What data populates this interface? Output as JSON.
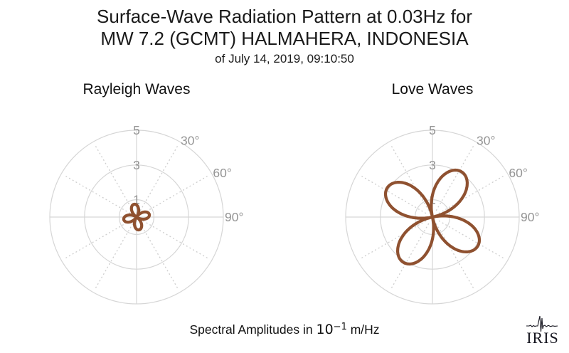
{
  "title": {
    "line1": "Surface-Wave Radiation Pattern at 0.03Hz for",
    "line2": "MW 7.2 (GCMT) HALMAHERA, INDONESIA",
    "line3": "of July 14, 2019, 09:10:50"
  },
  "caption": {
    "prefix": "Spectral Amplitudes in",
    "power_base": "10",
    "power_exponent": "−1",
    "unit": "m/Hz"
  },
  "logo": {
    "text": "IRIS",
    "waveform_icon": "seismogram-trace-icon"
  },
  "colors": {
    "background": "#ffffff",
    "pattern": "#8f5130",
    "grid": "#d6d6d6",
    "grid_dotted": "#cfcfcf",
    "tick_label": "#949494",
    "title_text": "#1a1a1a",
    "logo": "#15151f"
  },
  "chart_data": [
    {
      "type": "polar-line",
      "name": "rayleigh",
      "title": "Rayleigh Waves",
      "r_axis_max": 5,
      "r_ticks": [
        1,
        3,
        5
      ],
      "theta_tick_labels": [
        {
          "angle_deg": 30,
          "label": "30°"
        },
        {
          "angle_deg": 60,
          "label": "60°"
        },
        {
          "angle_deg": 90,
          "label": "90°"
        }
      ],
      "grid_spoke_angles_deg": [
        30,
        60,
        120,
        150,
        210,
        240,
        300,
        330
      ],
      "grid": "on",
      "pattern": {
        "model": "r = amplitude * |cos(2*(azimuth - rotation_deg))|",
        "n_lobes": 4,
        "amplitude": 0.75,
        "rotation_deg": -11,
        "lobe_azimuths_deg": [
          349,
          79,
          169,
          259
        ],
        "max_spectral_amplitude": 0.75
      }
    },
    {
      "type": "polar-line",
      "name": "love",
      "title": "Love Waves",
      "r_axis_max": 5,
      "r_ticks": [
        1,
        3,
        5
      ],
      "theta_tick_labels": [
        {
          "angle_deg": 30,
          "label": "30°"
        },
        {
          "angle_deg": 60,
          "label": "60°"
        },
        {
          "angle_deg": 90,
          "label": "90°"
        }
      ],
      "grid_spoke_angles_deg": [
        30,
        60,
        120,
        150,
        210,
        240,
        300,
        330
      ],
      "grid": "on",
      "pattern": {
        "model": "r = amplitude * |cos(2*(azimuth - rotation_deg))|",
        "n_lobes": 4,
        "amplitude": 3.1,
        "rotation_deg": 33,
        "lobe_azimuths_deg": [
          33,
          123,
          213,
          303
        ],
        "max_spectral_amplitude": 3.1
      }
    }
  ]
}
